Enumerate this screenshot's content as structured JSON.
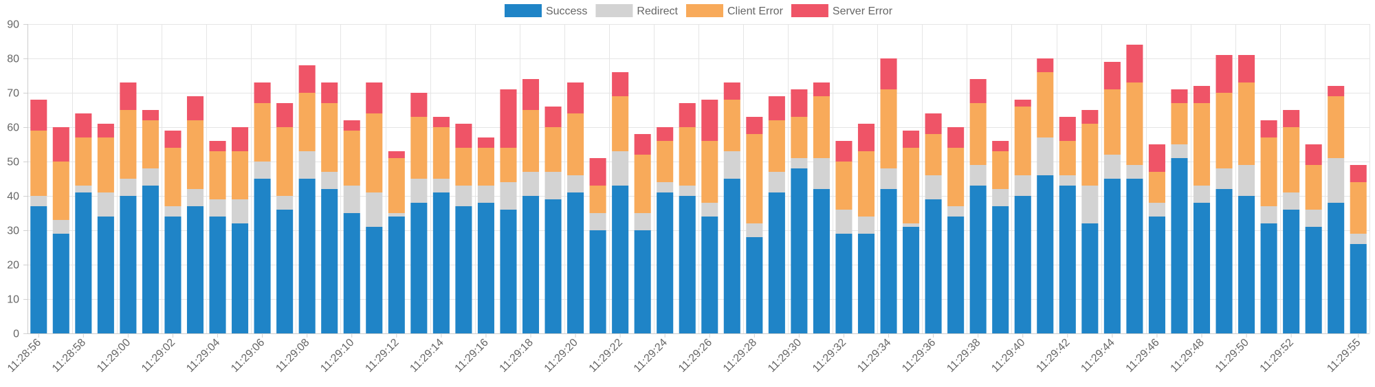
{
  "chart_data": {
    "type": "bar",
    "stacked": true,
    "ylim": [
      0,
      90
    ],
    "yticks": [
      0,
      10,
      20,
      30,
      40,
      50,
      60,
      70,
      80,
      90
    ],
    "grid": true,
    "legend_position": "top-center",
    "categories": [
      "11:28:56",
      "11:28:57",
      "11:28:58",
      "11:28:59",
      "11:29:00",
      "11:29:01",
      "11:29:02",
      "11:29:03",
      "11:29:04",
      "11:29:05",
      "11:29:06",
      "11:29:07",
      "11:29:08",
      "11:29:09",
      "11:29:10",
      "11:29:11",
      "11:29:12",
      "11:29:13",
      "11:29:14",
      "11:29:15",
      "11:29:16",
      "11:29:17",
      "11:29:18",
      "11:29:19",
      "11:29:20",
      "11:29:21",
      "11:29:22",
      "11:29:23",
      "11:29:24",
      "11:29:25",
      "11:29:26",
      "11:29:27",
      "11:29:28",
      "11:29:29",
      "11:29:30",
      "11:29:31",
      "11:29:32",
      "11:29:33",
      "11:29:34",
      "11:29:35",
      "11:29:36",
      "11:29:37",
      "11:29:38",
      "11:29:39",
      "11:29:40",
      "11:29:41",
      "11:29:42",
      "11:29:43",
      "11:29:44",
      "11:29:45",
      "11:29:46",
      "11:29:47",
      "11:29:48",
      "11:29:49",
      "11:29:50",
      "11:29:51",
      "11:29:52",
      "11:29:53",
      "11:29:54",
      "11:29:55"
    ],
    "tick_labels": [
      {
        "index": 0,
        "text": "11:28:56"
      },
      {
        "index": 2,
        "text": "11:28:58"
      },
      {
        "index": 4,
        "text": "11:29:00"
      },
      {
        "index": 6,
        "text": "11:29:02"
      },
      {
        "index": 8,
        "text": "11:29:04"
      },
      {
        "index": 10,
        "text": "11:29:06"
      },
      {
        "index": 12,
        "text": "11:29:08"
      },
      {
        "index": 14,
        "text": "11:29:10"
      },
      {
        "index": 16,
        "text": "11:29:12"
      },
      {
        "index": 18,
        "text": "11:29:14"
      },
      {
        "index": 20,
        "text": "11:29:16"
      },
      {
        "index": 22,
        "text": "11:29:18"
      },
      {
        "index": 24,
        "text": "11:29:20"
      },
      {
        "index": 26,
        "text": "11:29:22"
      },
      {
        "index": 28,
        "text": "11:29:24"
      },
      {
        "index": 30,
        "text": "11:29:26"
      },
      {
        "index": 32,
        "text": "11:29:28"
      },
      {
        "index": 34,
        "text": "11:29:30"
      },
      {
        "index": 36,
        "text": "11:29:32"
      },
      {
        "index": 38,
        "text": "11:29:34"
      },
      {
        "index": 40,
        "text": "11:29:36"
      },
      {
        "index": 42,
        "text": "11:29:38"
      },
      {
        "index": 44,
        "text": "11:29:40"
      },
      {
        "index": 46,
        "text": "11:29:42"
      },
      {
        "index": 48,
        "text": "11:29:44"
      },
      {
        "index": 50,
        "text": "11:29:46"
      },
      {
        "index": 52,
        "text": "11:29:48"
      },
      {
        "index": 54,
        "text": "11:29:50"
      },
      {
        "index": 56,
        "text": "11:29:52"
      },
      {
        "index": 59,
        "text": "11:29:55"
      }
    ],
    "series": [
      {
        "name": "Success",
        "color": "#1f84c7",
        "values": [
          37,
          29,
          41,
          34,
          40,
          43,
          34,
          37,
          34,
          32,
          45,
          36,
          45,
          42,
          35,
          31,
          34,
          38,
          41,
          37,
          38,
          36,
          40,
          39,
          41,
          30,
          43,
          30,
          41,
          40,
          34,
          45,
          28,
          41,
          48,
          42,
          29,
          29,
          42,
          31,
          39,
          34,
          43,
          37,
          40,
          46,
          43,
          32,
          45,
          45,
          34,
          51,
          38,
          42,
          40,
          32,
          36,
          31,
          38,
          26
        ]
      },
      {
        "name": "Redirect",
        "color": "#d3d3d3",
        "values": [
          3,
          4,
          2,
          7,
          5,
          5,
          3,
          5,
          5,
          7,
          5,
          4,
          8,
          5,
          8,
          10,
          1,
          7,
          4,
          6,
          5,
          8,
          7,
          8,
          5,
          5,
          10,
          5,
          3,
          3,
          4,
          8,
          4,
          6,
          3,
          9,
          7,
          5,
          6,
          1,
          7,
          3,
          6,
          5,
          6,
          11,
          3,
          11,
          7,
          4,
          4,
          4,
          5,
          6,
          9,
          5,
          5,
          5,
          13,
          3
        ]
      },
      {
        "name": "Client Error",
        "color": "#f8aa5a",
        "values": [
          19,
          17,
          14,
          16,
          20,
          14,
          17,
          20,
          14,
          14,
          17,
          20,
          17,
          20,
          16,
          23,
          16,
          18,
          15,
          11,
          11,
          10,
          18,
          13,
          18,
          8,
          16,
          17,
          12,
          17,
          18,
          15,
          26,
          15,
          12,
          18,
          14,
          19,
          23,
          22,
          12,
          17,
          18,
          11,
          20,
          19,
          10,
          18,
          19,
          24,
          9,
          12,
          24,
          22,
          24,
          20,
          19,
          13,
          18,
          15
        ]
      },
      {
        "name": "Server Error",
        "color": "#ef5467",
        "values": [
          9,
          10,
          7,
          4,
          8,
          3,
          5,
          7,
          3,
          7,
          6,
          7,
          8,
          6,
          3,
          9,
          2,
          7,
          3,
          7,
          3,
          17,
          9,
          6,
          9,
          8,
          7,
          6,
          4,
          7,
          12,
          5,
          5,
          7,
          8,
          4,
          6,
          8,
          9,
          5,
          6,
          6,
          7,
          3,
          2,
          4,
          7,
          4,
          8,
          11,
          8,
          4,
          5,
          11,
          8,
          5,
          5,
          6,
          3,
          5
        ]
      }
    ]
  }
}
